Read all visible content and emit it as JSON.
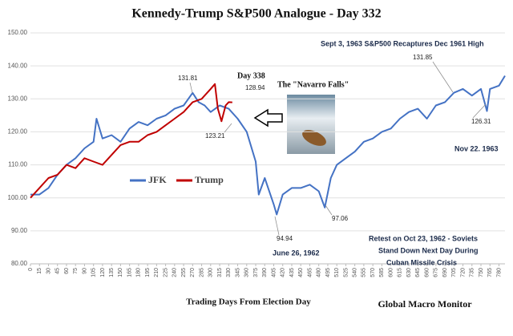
{
  "chart_data": {
    "type": "line",
    "title": "Kennedy-Trump S&P500 Analogue - Day 332",
    "xlabel": "Trading  Days From Election Day",
    "credit": "Global Macro Monitor",
    "xlim": [
      0,
      790
    ],
    "ylim": [
      80,
      150
    ],
    "xticks": [
      0,
      15,
      30,
      45,
      60,
      75,
      90,
      105,
      120,
      135,
      150,
      165,
      180,
      195,
      210,
      225,
      240,
      255,
      270,
      285,
      300,
      315,
      330,
      345,
      360,
      375,
      390,
      405,
      420,
      435,
      450,
      465,
      480,
      495,
      510,
      525,
      540,
      555,
      570,
      585,
      600,
      615,
      630,
      645,
      660,
      675,
      690,
      705,
      720,
      735,
      750,
      765,
      780
    ],
    "yticks": [
      {
        "value": 80,
        "label": "80.00"
      },
      {
        "value": 90,
        "label": "90.00"
      },
      {
        "value": 100,
        "label": "100.00"
      },
      {
        "value": 110,
        "label": "110.00"
      },
      {
        "value": 120,
        "label": "120.00"
      },
      {
        "value": 130,
        "label": "130.00"
      },
      {
        "value": 140,
        "label": "140.00"
      },
      {
        "value": 150,
        "label": "150.00"
      }
    ],
    "grid": true,
    "series": [
      {
        "name": "JFK",
        "color": "#4472c4",
        "x": [
          0,
          15,
          30,
          45,
          60,
          75,
          90,
          105,
          110,
          120,
          135,
          150,
          165,
          180,
          195,
          210,
          225,
          240,
          255,
          270,
          280,
          290,
          300,
          315,
          330,
          345,
          360,
          375,
          380,
          390,
          405,
          410,
          420,
          435,
          450,
          465,
          480,
          490,
          500,
          510,
          525,
          540,
          555,
          570,
          585,
          600,
          615,
          630,
          645,
          660,
          675,
          690,
          705,
          720,
          735,
          750,
          760,
          765,
          780,
          790
        ],
        "values": [
          101,
          101,
          103,
          107,
          110,
          112,
          115,
          117,
          124,
          118,
          119,
          117,
          121,
          123,
          122,
          124,
          125,
          127,
          128,
          131.81,
          129,
          128,
          126,
          128,
          127,
          124,
          120,
          111,
          101,
          106,
          98,
          94.94,
          101,
          103,
          103,
          104,
          102,
          97.06,
          106,
          110,
          112,
          114,
          117,
          118,
          120,
          121,
          124,
          126,
          127,
          124,
          128,
          129,
          131.85,
          133,
          131,
          133,
          126.31,
          133,
          134,
          137
        ]
      },
      {
        "name": "Trump",
        "color": "#c00000",
        "x": [
          0,
          15,
          30,
          45,
          60,
          75,
          90,
          105,
          120,
          135,
          150,
          165,
          180,
          195,
          210,
          225,
          240,
          255,
          270,
          285,
          300,
          307,
          312,
          318,
          325,
          330,
          336
        ],
        "values": [
          100,
          103,
          106,
          107,
          110,
          109,
          112,
          111,
          110,
          113,
          116,
          117,
          117,
          119,
          120,
          122,
          124,
          126,
          129,
          130,
          133,
          134.5,
          127,
          123.21,
          128,
          129,
          128.94
        ]
      }
    ],
    "annotations": [
      "Sept 3, 1963  S&P500 Recaptures Dec 1961 High",
      "131.85",
      "126.31",
      "Nov 22. 1963",
      "131.81",
      "Day 338",
      "128.94",
      "123.21",
      "The \"Navarro Falls\"",
      "94.94",
      "June 26, 1962",
      "97.06",
      "Retest on Oct 23, 1962 - Soviets",
      "Stand Down Next Day During",
      "Cuban Missile Crisis"
    ]
  }
}
